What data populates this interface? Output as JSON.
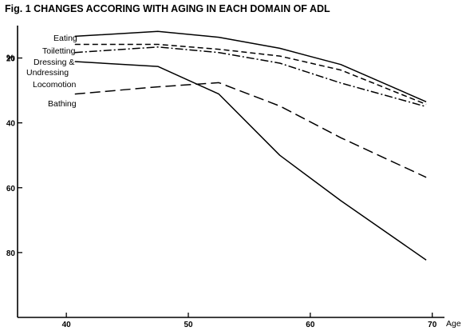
{
  "chart_data": {
    "type": "line",
    "title": "Fig. 1  CHANGES ACCORING WITH AGING IN EACH DOMAIN OF ADL",
    "ylabel": "%",
    "xlabel": "Age",
    "ylim": [
      100,
      10
    ],
    "xlim": [
      36,
      71
    ],
    "y_inverted": true,
    "yticks": [
      20,
      40,
      60,
      80
    ],
    "xticks": [
      40,
      50,
      60,
      70
    ],
    "xtick_labels": [
      "40",
      "50",
      "60",
      "70"
    ],
    "grid": false,
    "series": [
      {
        "name": "Eating",
        "line_style": "solid",
        "x": [
          40.7,
          47.5,
          52.5,
          57.5,
          62.5,
          69.5
        ],
        "y": [
          13.3,
          11.8,
          13.6,
          17.0,
          22.0,
          33.5
        ]
      },
      {
        "name": "Toiletting",
        "line_style": "short-dash",
        "x": [
          40.7,
          47.5,
          52.5,
          57.5,
          62.5,
          69.5
        ],
        "y": [
          15.8,
          15.8,
          17.3,
          19.4,
          23.7,
          34.3
        ]
      },
      {
        "name": "Dressing & Undressing",
        "line_style": "dash-dot",
        "x": [
          40.7,
          47.5,
          52.5,
          57.5,
          62.5,
          69.5
        ],
        "y": [
          18.3,
          16.6,
          18.3,
          21.6,
          27.7,
          35.0
        ]
      },
      {
        "name": "Locomotion",
        "line_style": "solid",
        "x": [
          40.7,
          47.5,
          52.5,
          57.5,
          62.5,
          69.5
        ],
        "y": [
          21.1,
          22.6,
          31.1,
          50.0,
          64.0,
          82.3
        ]
      },
      {
        "name": "Bathing",
        "line_style": "long-dash",
        "x": [
          40.7,
          47.5,
          52.5,
          57.5,
          62.5,
          69.5
        ],
        "y": [
          31.1,
          28.9,
          27.6,
          34.8,
          44.6,
          56.8
        ]
      }
    ]
  }
}
